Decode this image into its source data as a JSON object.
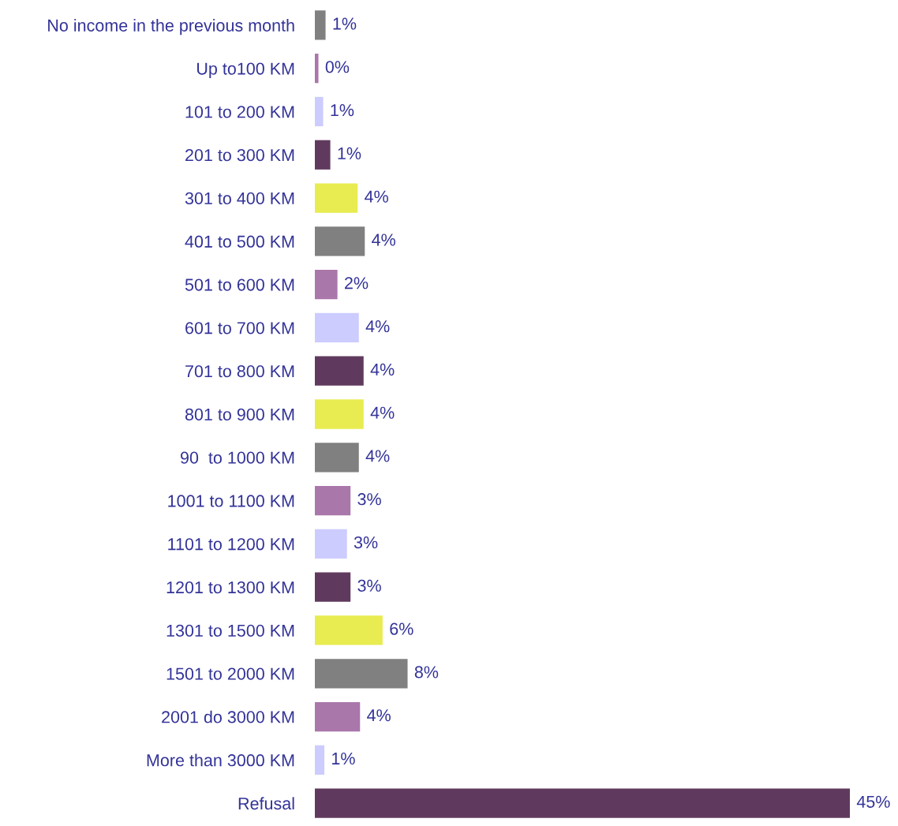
{
  "chart_data": {
    "type": "bar",
    "orientation": "horizontal",
    "categories": [
      "No income in the previous month",
      "Up to100 KM",
      "101 to 200 KM",
      "201 to 300 KM",
      "301 to 400 KM",
      "401 to 500 KM",
      "501 to 600 KM",
      "601 to 700 KM",
      "701 to 800 KM",
      "801 to 900 KM",
      "90  to 1000 KM",
      "1001 to 1100 KM",
      "1101 to 1200 KM",
      "1201 to 1300 KM",
      "1301 to 1500 KM",
      "1501 to 2000 KM",
      "2001 do 3000 KM",
      "More than 3000 KM",
      "Refusal"
    ],
    "values": [
      0.9,
      0.3,
      0.7,
      1.3,
      3.6,
      4.2,
      1.9,
      3.7,
      4.1,
      4.1,
      3.7,
      3.0,
      2.7,
      3.0,
      5.7,
      7.8,
      3.8,
      0.8,
      45
    ],
    "value_labels": [
      "1%",
      "0%",
      "1%",
      "1%",
      "4%",
      "4%",
      "2%",
      "4%",
      "4%",
      "4%",
      "4%",
      "3%",
      "3%",
      "3%",
      "6%",
      "8%",
      "4%",
      "1%",
      "45%"
    ],
    "colors": [
      "#808080",
      "#aa77aa",
      "#ccccff",
      "#603a5e",
      "#e8ec50",
      "#808080",
      "#aa77aa",
      "#ccccff",
      "#603a5e",
      "#e8ec50",
      "#808080",
      "#aa77aa",
      "#ccccff",
      "#603a5e",
      "#e8ec50",
      "#808080",
      "#aa77aa",
      "#ccccff",
      "#603a5e"
    ],
    "tick_labels": "y",
    "grid": false,
    "legend": false
  }
}
